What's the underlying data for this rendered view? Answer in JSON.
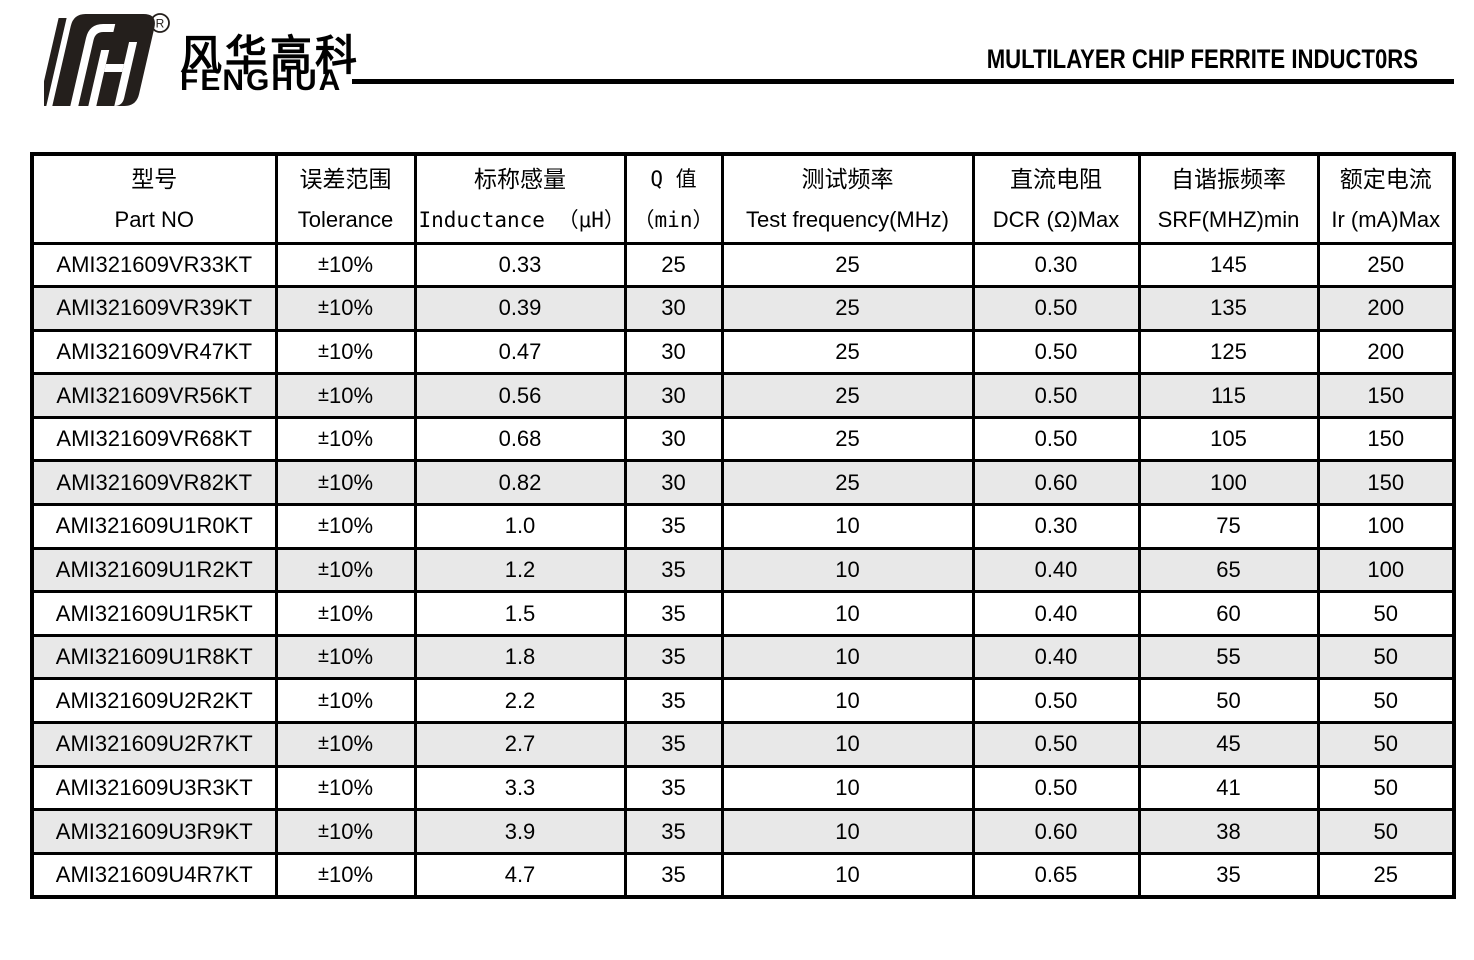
{
  "letterhead": {
    "logo": {
      "monogram": "fH",
      "registered_mark": "®",
      "company_cn": "风华高科",
      "company_en": "FENGHUA"
    },
    "title": "MULTILAYER CHIP FERRITE INDUCT0RS"
  },
  "colors": {
    "border": "#000000",
    "alt_row_bg": "#e8e8e8",
    "text": "#000000"
  },
  "table": {
    "columns": [
      {
        "cn": "型号",
        "en": "Part NO"
      },
      {
        "cn": "误差范围",
        "en": "Tolerance"
      },
      {
        "cn": "标称感量",
        "en": "Inductance （μH）"
      },
      {
        "cn": "Q 值",
        "en": "（min）"
      },
      {
        "cn": "测试频率",
        "en": "Test frequency(MHz)"
      },
      {
        "cn": "直流电阻",
        "en": "DCR (Ω)Max"
      },
      {
        "cn": "自谐振频率",
        "en": "SRF(MHZ)min"
      },
      {
        "cn": "额定电流",
        "en": "Ir (mA)Max"
      }
    ],
    "rows": [
      [
        "AMI321609VR33KT",
        "±10%",
        "0.33",
        "25",
        "25",
        "0.30",
        "145",
        "250"
      ],
      [
        "AMI321609VR39KT",
        "±10%",
        "0.39",
        "30",
        "25",
        "0.50",
        "135",
        "200"
      ],
      [
        "AMI321609VR47KT",
        "±10%",
        "0.47",
        "30",
        "25",
        "0.50",
        "125",
        "200"
      ],
      [
        "AMI321609VR56KT",
        "±10%",
        "0.56",
        "30",
        "25",
        "0.50",
        "115",
        "150"
      ],
      [
        "AMI321609VR68KT",
        "±10%",
        "0.68",
        "30",
        "25",
        "0.50",
        "105",
        "150"
      ],
      [
        "AMI321609VR82KT",
        "±10%",
        "0.82",
        "30",
        "25",
        "0.60",
        "100",
        "150"
      ],
      [
        "AMI321609U1R0KT",
        "±10%",
        "1.0",
        "35",
        "10",
        "0.30",
        "75",
        "100"
      ],
      [
        "AMI321609U1R2KT",
        "±10%",
        "1.2",
        "35",
        "10",
        "0.40",
        "65",
        "100"
      ],
      [
        "AMI321609U1R5KT",
        "±10%",
        "1.5",
        "35",
        "10",
        "0.40",
        "60",
        "50"
      ],
      [
        "AMI321609U1R8KT",
        "±10%",
        "1.8",
        "35",
        "10",
        "0.40",
        "55",
        "50"
      ],
      [
        "AMI321609U2R2KT",
        "±10%",
        "2.2",
        "35",
        "10",
        "0.50",
        "50",
        "50"
      ],
      [
        "AMI321609U2R7KT",
        "±10%",
        "2.7",
        "35",
        "10",
        "0.50",
        "45",
        "50"
      ],
      [
        "AMI321609U3R3KT",
        "±10%",
        "3.3",
        "35",
        "10",
        "0.50",
        "41",
        "50"
      ],
      [
        "AMI321609U3R9KT",
        "±10%",
        "3.9",
        "35",
        "10",
        "0.60",
        "38",
        "50"
      ],
      [
        "AMI321609U4R7KT",
        "±10%",
        "4.7",
        "35",
        "10",
        "0.65",
        "35",
        "25"
      ]
    ]
  }
}
